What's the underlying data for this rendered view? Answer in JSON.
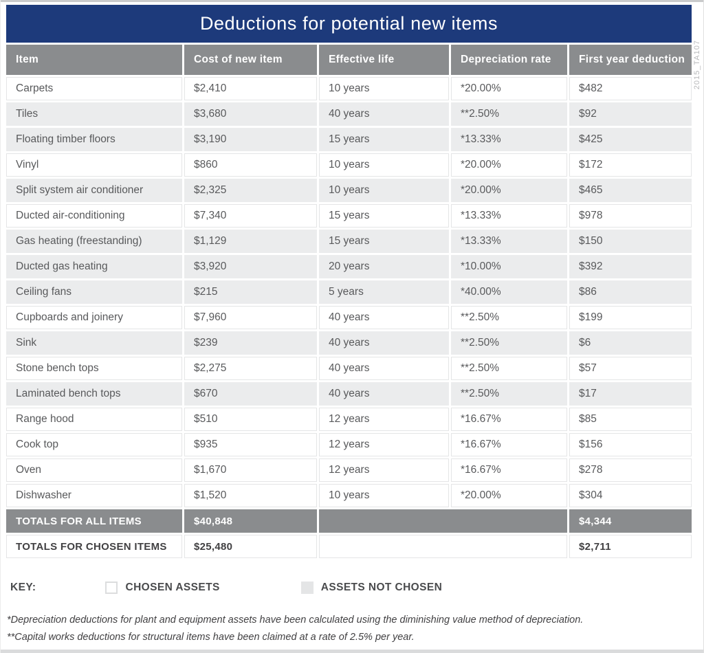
{
  "title": "Deductions for potential new items",
  "side_label": "2015_TA107",
  "table": {
    "columns": [
      "Item",
      "Cost of new item",
      "Effective life",
      "Depreciation rate",
      "First year deduction"
    ],
    "rows": [
      {
        "item": "Carpets",
        "cost": "$2,410",
        "life": "10 years",
        "rate": "*20.00%",
        "deduction": "$482",
        "chosen": true
      },
      {
        "item": "Tiles",
        "cost": "$3,680",
        "life": "40 years",
        "rate": "**2.50%",
        "deduction": "$92",
        "chosen": false
      },
      {
        "item": "Floating timber floors",
        "cost": "$3,190",
        "life": "15 years",
        "rate": "*13.33%",
        "deduction": "$425",
        "chosen": false
      },
      {
        "item": "Vinyl",
        "cost": "$860",
        "life": "10 years",
        "rate": "*20.00%",
        "deduction": "$172",
        "chosen": true
      },
      {
        "item": "Split system air conditioner",
        "cost": "$2,325",
        "life": "10 years",
        "rate": "*20.00%",
        "deduction": "$465",
        "chosen": false
      },
      {
        "item": "Ducted air-conditioning",
        "cost": "$7,340",
        "life": "15 years",
        "rate": "*13.33%",
        "deduction": "$978",
        "chosen": true
      },
      {
        "item": "Gas heating (freestanding)",
        "cost": "$1,129",
        "life": "15 years",
        "rate": "*13.33%",
        "deduction": "$150",
        "chosen": false
      },
      {
        "item": "Ducted gas heating",
        "cost": "$3,920",
        "life": "20 years",
        "rate": "*10.00%",
        "deduction": "$392",
        "chosen": false
      },
      {
        "item": "Ceiling fans",
        "cost": "$215",
        "life": "5 years",
        "rate": "*40.00%",
        "deduction": "$86",
        "chosen": false
      },
      {
        "item": "Cupboards and joinery",
        "cost": "$7,960",
        "life": "40 years",
        "rate": "**2.50%",
        "deduction": "$199",
        "chosen": true
      },
      {
        "item": "Sink",
        "cost": "$239",
        "life": "40 years",
        "rate": "**2.50%",
        "deduction": "$6",
        "chosen": false
      },
      {
        "item": "Stone bench tops",
        "cost": "$2,275",
        "life": "40 years",
        "rate": "**2.50%",
        "deduction": "$57",
        "chosen": true
      },
      {
        "item": "Laminated bench tops",
        "cost": "$670",
        "life": "40 years",
        "rate": "**2.50%",
        "deduction": "$17",
        "chosen": false
      },
      {
        "item": "Range hood",
        "cost": "$510",
        "life": "12 years",
        "rate": "*16.67%",
        "deduction": "$85",
        "chosen": true
      },
      {
        "item": "Cook top",
        "cost": "$935",
        "life": "12 years",
        "rate": "*16.67%",
        "deduction": "$156",
        "chosen": true
      },
      {
        "item": "Oven",
        "cost": "$1,670",
        "life": "12 years",
        "rate": "*16.67%",
        "deduction": "$278",
        "chosen": true
      },
      {
        "item": "Dishwasher",
        "cost": "$1,520",
        "life": "10 years",
        "rate": "*20.00%",
        "deduction": "$304",
        "chosen": true
      }
    ],
    "totals_all": {
      "label": "TOTALS FOR ALL ITEMS",
      "cost": "$40,848",
      "deduction": "$4,344"
    },
    "totals_chosen": {
      "label": "TOTALS FOR CHOSEN ITEMS",
      "cost": "$25,480",
      "deduction": "$2,711"
    }
  },
  "key": {
    "label": "KEY:",
    "chosen_label": "CHOSEN ASSETS",
    "not_chosen_label": "ASSETS NOT CHOSEN"
  },
  "footnotes": [
    "*Depreciation deductions for plant and equipment assets have been calculated using the diminishing value method of depreciation.",
    "**Capital works deductions for structural items have been claimed at a rate of 2.5% per year."
  ],
  "colors": {
    "navy": "#1d3a7b",
    "header_gray": "#8a8c8e",
    "row_gray": "#ebeced",
    "cell_border": "#e4e5e6"
  }
}
